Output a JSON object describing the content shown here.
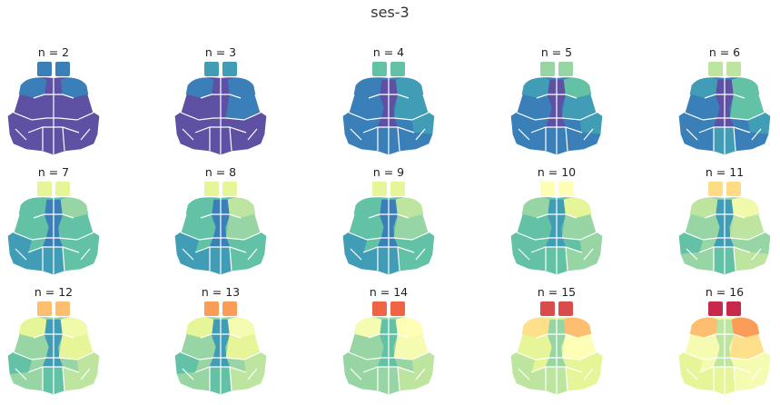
{
  "figure": {
    "title": "ses-3"
  },
  "panels": [
    {
      "label": "n = 2",
      "colors": [
        "#3b7fb9",
        "#5e50a2",
        "#3b7fb9",
        "#3b7fb9",
        "#5e50a2",
        "#5e50a2",
        "#5e50a2",
        "#5e50a2",
        "#5e50a2",
        "#5e50a2",
        "#5e50a2",
        "#5e50a2"
      ]
    },
    {
      "label": "n = 3",
      "colors": [
        "#419cb5",
        "#5e50a2",
        "#3b7fb9",
        "#3b7fb9",
        "#5e50a2",
        "#5e50a2",
        "#3b7fb9",
        "#5e50a2",
        "#5e50a2",
        "#5e50a2",
        "#5e50a2",
        "#5e50a2"
      ]
    },
    {
      "label": "n = 4",
      "colors": [
        "#63c2a5",
        "#5e50a2",
        "#3b7fb9",
        "#419cb5",
        "#5e50a2",
        "#3b7fb9",
        "#419cb5",
        "#3b7fb9",
        "#419cb5",
        "#3b7fb9",
        "#3b7fb9",
        "#3b7fb9"
      ]
    },
    {
      "label": "n = 5",
      "colors": [
        "#98d5a4",
        "#5e50a2",
        "#419cb5",
        "#63c2a5",
        "#5e50a2",
        "#3b7fb9",
        "#419cb5",
        "#3b7fb9",
        "#419cb5",
        "#3b7fb9",
        "#3b7fb9",
        "#3b7fb9"
      ]
    },
    {
      "label": "n = 6",
      "colors": [
        "#bde5a0",
        "#5e50a2",
        "#419cb5",
        "#63c2a5",
        "#5e50a2",
        "#3b7fb9",
        "#63c2a5",
        "#3b7fb9",
        "#419cb5",
        "#3b7fb9",
        "#3b7fb9",
        "#419cb5"
      ]
    },
    {
      "label": "n = 7",
      "colors": [
        "#e6f598",
        "#3b7fb9",
        "#63c2a5",
        "#98d5a4",
        "#3b7fb9",
        "#63c2a5",
        "#63c2a5",
        "#419cb5",
        "#63c2a5",
        "#419cb5",
        "#63c2a5",
        "#419cb5"
      ]
    },
    {
      "label": "n = 8",
      "colors": [
        "#e6f598",
        "#3b7fb9",
        "#63c2a5",
        "#bde5a0",
        "#3b7fb9",
        "#63c2a5",
        "#98d5a4",
        "#419cb5",
        "#63c2a5",
        "#419cb5",
        "#63c2a5",
        "#419cb5"
      ]
    },
    {
      "label": "n = 9",
      "colors": [
        "#e6f598",
        "#3b7fb9",
        "#63c2a5",
        "#bde5a0",
        "#3b7fb9",
        "#63c2a5",
        "#98d5a4",
        "#419cb5",
        "#63c2a5",
        "#419cb5",
        "#63c2a5",
        "#419cb5"
      ]
    },
    {
      "label": "n = 10",
      "colors": [
        "#fefeb7",
        "#419cb5",
        "#98d5a4",
        "#e6f598",
        "#419cb5",
        "#63c2a5",
        "#98d5a4",
        "#63c2a5",
        "#98d5a4",
        "#63c2a5",
        "#98d5a4",
        "#63c2a5"
      ]
    },
    {
      "label": "n = 11",
      "colors": [
        "#fddc85",
        "#419cb5",
        "#bde5a0",
        "#f1f9aa",
        "#419cb5",
        "#98d5a4",
        "#bde5a0",
        "#63c2a5",
        "#98d5a4",
        "#98d5a4",
        "#bde5a0",
        "#63c2a5"
      ]
    },
    {
      "label": "n = 12",
      "colors": [
        "#fdbe6f",
        "#419cb5",
        "#e6f598",
        "#f1f9aa",
        "#419cb5",
        "#98d5a4",
        "#e6f598",
        "#63c2a5",
        "#bde5a0",
        "#98d5a4",
        "#bde5a0",
        "#63c2a5"
      ]
    },
    {
      "label": "n = 13",
      "colors": [
        "#fb9d59",
        "#419cb5",
        "#e6f598",
        "#f6fbb2",
        "#419cb5",
        "#98d5a4",
        "#e6f598",
        "#63c2a5",
        "#bde5a0",
        "#98d5a4",
        "#bde5a0",
        "#63c2a5"
      ]
    },
    {
      "label": "n = 14",
      "colors": [
        "#ef6445",
        "#63c2a5",
        "#f6fbb2",
        "#fefeb7",
        "#63c2a5",
        "#98d5a4",
        "#f6fbb2",
        "#98d5a4",
        "#bde5a0",
        "#98d5a4",
        "#bde5a0",
        "#98d5a4"
      ]
    },
    {
      "label": "n = 15",
      "colors": [
        "#dc4b4c",
        "#98d5a4",
        "#fee08b",
        "#fdbe6f",
        "#98d5a4",
        "#e6f598",
        "#fefeb7",
        "#bde5a0",
        "#e6f598",
        "#bde5a0",
        "#e6f598",
        "#bde5a0"
      ]
    },
    {
      "label": "n = 16",
      "colors": [
        "#c8284b",
        "#bde5a0",
        "#fdbe6f",
        "#fb9d59",
        "#bde5a0",
        "#f6fbb2",
        "#fee08b",
        "#e6f598",
        "#f6fbb2",
        "#e6f598",
        "#f6fbb2",
        "#e6f598"
      ]
    }
  ]
}
